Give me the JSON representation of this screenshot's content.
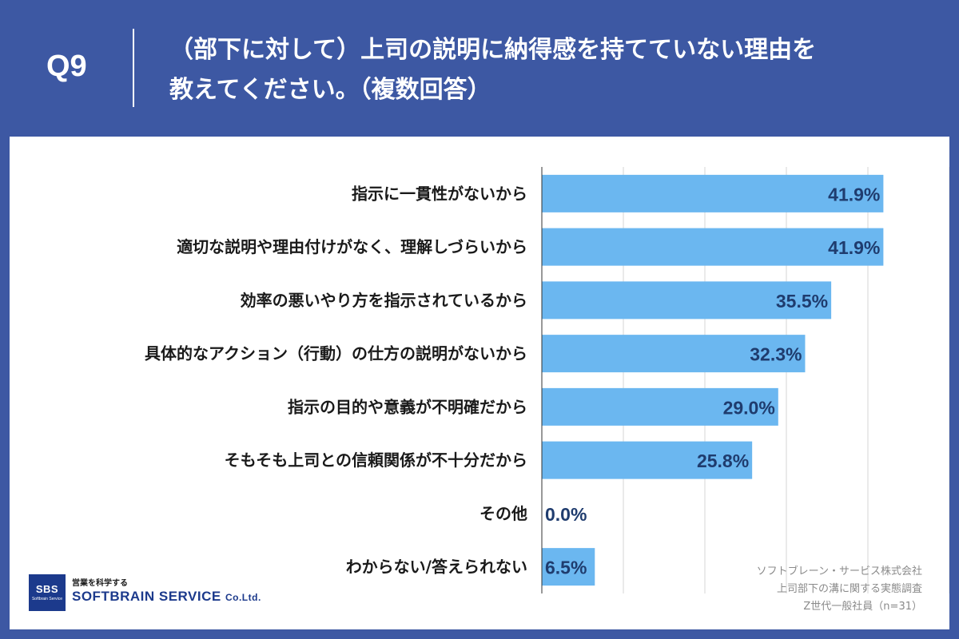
{
  "header": {
    "question_label": "Q9",
    "title": "（部下に対して）上司の説明に納得感を持てていない理由を\n教えてください。（複数回答）"
  },
  "colors": {
    "background": "#3d58a3",
    "bar": "#6bb7f0",
    "value_text": "#1f3c6e",
    "grid": "#d6d6d6"
  },
  "chart_data": {
    "type": "bar",
    "orientation": "horizontal",
    "categories": [
      "指示に一貫性がないから",
      "適切な説明や理由付けがなく、理解しづらいから",
      "効率の悪いやり方を指示されているから",
      "具体的なアクション（行動）の仕方の説明がないから",
      "指示の目的や意義が不明確だから",
      "そもそも上司との信頼関係が不十分だから",
      "その他",
      "わからない/答えられない"
    ],
    "values": [
      41.9,
      41.9,
      35.5,
      32.3,
      29.0,
      25.8,
      0.0,
      6.5
    ],
    "value_labels": [
      "41.9%",
      "41.9%",
      "35.5%",
      "32.3%",
      "29.0%",
      "25.8%",
      "0.0%",
      "6.5%"
    ],
    "xlim": [
      0,
      50
    ],
    "grid": true,
    "title": "",
    "xlabel": "",
    "ylabel": ""
  },
  "logo": {
    "badge": "SBS",
    "badge_sub": "Softbrain Service",
    "tagline": "営業を科学する",
    "name": "SOFTBRAIN SERVICE",
    "name_suffix": "Co.Ltd."
  },
  "source": {
    "line1": "ソフトブレーン・サービス株式会社",
    "line2": "上司部下の溝に関する実態調査",
    "line3": "Z世代一般社員（n=31）"
  }
}
